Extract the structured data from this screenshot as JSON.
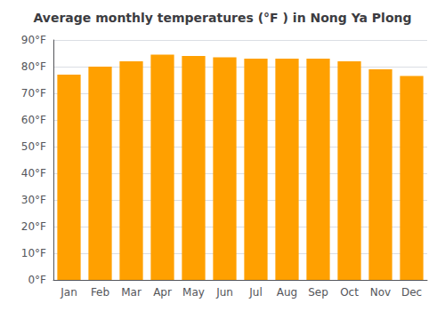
{
  "chart_data": {
    "type": "bar",
    "title": "Average monthly temperatures (°F ) in Nong Ya Plong",
    "categories": [
      "Jan",
      "Feb",
      "Mar",
      "Apr",
      "May",
      "Jun",
      "Jul",
      "Aug",
      "Sep",
      "Oct",
      "Nov",
      "Dec"
    ],
    "values": [
      77,
      80,
      82,
      84.5,
      84,
      83.5,
      83,
      83,
      83,
      82,
      79,
      76.5
    ],
    "color": "#FFA000",
    "ylim": [
      0,
      90
    ],
    "yticks": [
      {
        "value": 0,
        "label": "0°F"
      },
      {
        "value": 10,
        "label": "10°F"
      },
      {
        "value": 20,
        "label": "20°F"
      },
      {
        "value": 30,
        "label": "30°F"
      },
      {
        "value": 40,
        "label": "40°F"
      },
      {
        "value": 50,
        "label": "50°F"
      },
      {
        "value": 60,
        "label": "60°F"
      },
      {
        "value": 70,
        "label": "70°F"
      },
      {
        "value": 80,
        "label": "80°F"
      },
      {
        "value": 90,
        "label": "90°F"
      }
    ],
    "grid": true
  }
}
